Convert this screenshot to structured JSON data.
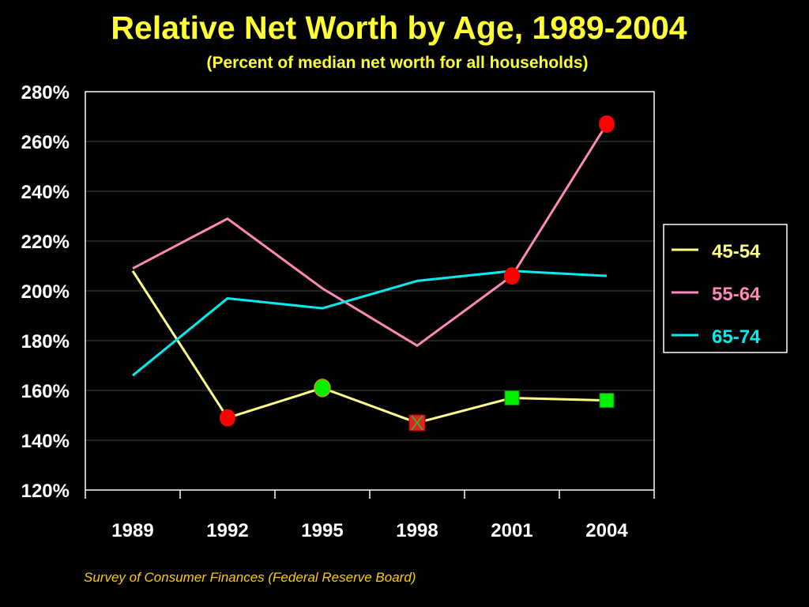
{
  "title": "Relative Net Worth by Age, 1989-2004",
  "subtitle": "(Percent of median net worth for all households)",
  "source": "Survey of Consumer Finances (Federal Reserve Board)",
  "colors": {
    "background": "#000000",
    "title": "#ffff33",
    "subtitle": "#ffff33",
    "source": "#ffcc00",
    "axis_text": "#ffffff",
    "grid": "#444444",
    "frame": "#ffffff",
    "marker_red": "#ff0000",
    "marker_green": "#00ee00"
  },
  "chart_data": {
    "type": "line",
    "title": "Relative Net Worth by Age, 1989-2004",
    "subtitle": "(Percent of median net worth for all households)",
    "xlabel": "",
    "ylabel": "",
    "categories": [
      "1989",
      "1992",
      "1995",
      "1998",
      "2001",
      "2004"
    ],
    "ylim": [
      120,
      280
    ],
    "ytick_step": 20,
    "ytick_labels": [
      "120%",
      "140%",
      "160%",
      "180%",
      "200%",
      "220%",
      "240%",
      "260%",
      "280%"
    ],
    "grid": true,
    "legend_position": "right",
    "series": [
      {
        "name": "45-54",
        "color": "#ffff88",
        "values": [
          208,
          149,
          161,
          147,
          157,
          156
        ],
        "markers": [
          null,
          "red-circle",
          "green-circle",
          "red-square-x",
          "green-square",
          "green-square"
        ]
      },
      {
        "name": "55-64",
        "color": "#ff88bb",
        "values": [
          209,
          229,
          201,
          178,
          206,
          267
        ],
        "markers": [
          null,
          null,
          null,
          null,
          "red-circle",
          "red-circle"
        ]
      },
      {
        "name": "65-74",
        "color": "#00eeee",
        "values": [
          166,
          197,
          193,
          204,
          208,
          206
        ],
        "markers": [
          null,
          null,
          null,
          null,
          null,
          null
        ]
      }
    ]
  }
}
